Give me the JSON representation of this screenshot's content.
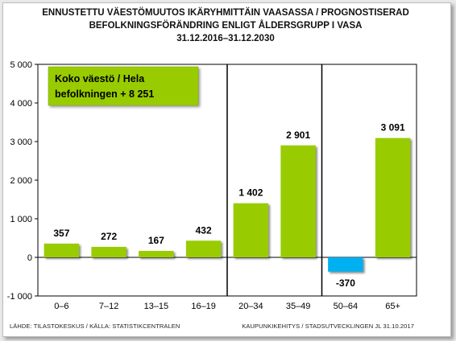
{
  "chart_data": {
    "type": "bar",
    "title_lines": [
      "ENNUSTETTU VÄESTÖMUUTOS IKÄRYHMITTÄIN VAASASSA / PROGNOSTISERAD",
      "BEFOLKNINGSFÖRÄNDRING ENLIGT ÅLDERSGRUPP I VASA",
      "31.12.2016–31.12.2030"
    ],
    "categories": [
      "0–6",
      "7–12",
      "13–15",
      "16–19",
      "20–34",
      "35–49",
      "50–64",
      "65+"
    ],
    "values": [
      357,
      272,
      167,
      432,
      1402,
      2901,
      -370,
      3091
    ],
    "value_labels": [
      "357",
      "272",
      "167",
      "432",
      "1 402",
      "2 901",
      "-370",
      "3 091"
    ],
    "yticks": [
      -1000,
      0,
      1000,
      2000,
      3000,
      4000,
      5000
    ],
    "ytick_labels": [
      "-1 000",
      "0",
      "1 000",
      "2 000",
      "3 000",
      "4 000",
      "5 000"
    ],
    "ylim": [
      -1000,
      5000
    ],
    "grid": false,
    "positive_color": "#99cc00",
    "negative_color": "#00b0f0",
    "group_separators_after": [
      "16–19",
      "35–49"
    ],
    "callout": [
      "Koko väestö / Hela",
      "befolkningen + 8 251"
    ],
    "callout_color": "#99cc00"
  },
  "footer": {
    "source": "LÄHDE: TILASTOKESKUS / KÄLLA: STATISTIKCENTRALEN",
    "credit": "KAUPUNKIKEHITYS / STADSUTVECKLINGEN JL 31.10.2017"
  }
}
